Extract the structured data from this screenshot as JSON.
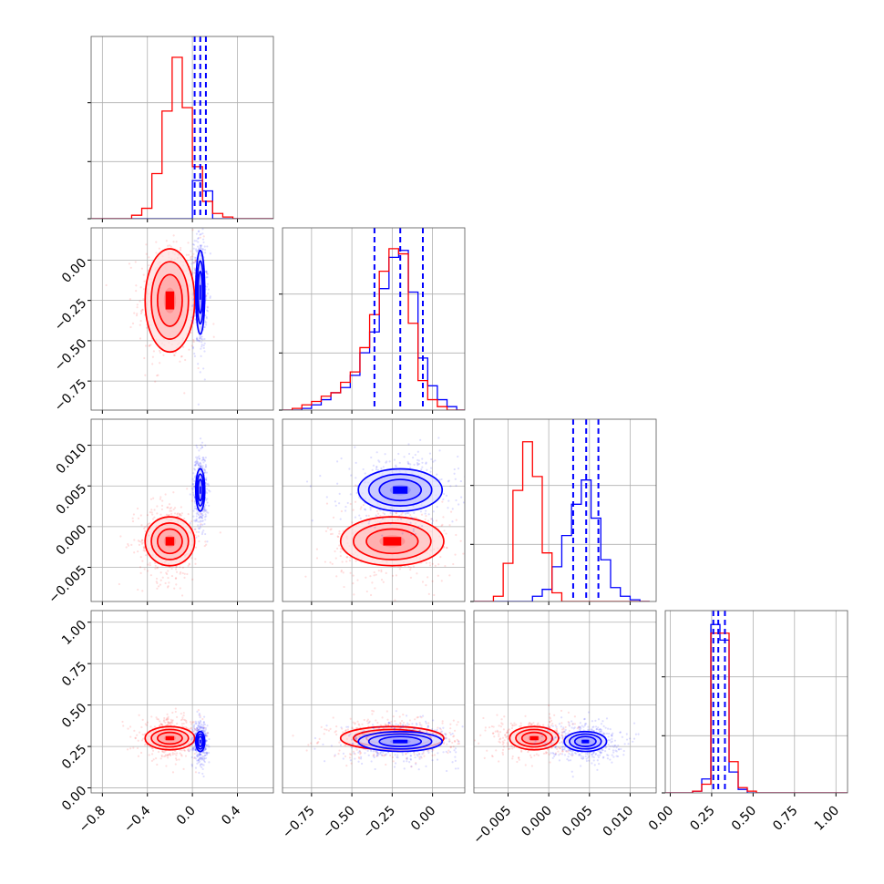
{
  "colors": {
    "red": "#ff0000",
    "blue": "#0000ff",
    "grid": "#b0b0b0",
    "frame": "#555555"
  },
  "chart_data": {
    "type": "corner",
    "grid": true,
    "series": [
      {
        "name": "",
        "color": "#ff0000",
        "means": [
          -0.2,
          -0.25,
          -0.0018,
          0.3
        ],
        "sigmas": [
          0.11,
          0.16,
          0.0015,
          0.035
        ],
        "scatter_sigmas": [
          0.14,
          0.2,
          0.0025,
          0.06
        ]
      },
      {
        "name": "",
        "color": "#0000ff",
        "means": [
          0.07,
          -0.2,
          0.0045,
          0.28
        ],
        "sigmas": [
          0.02,
          0.13,
          0.0013,
          0.03
        ],
        "scatter_sigmas": [
          0.03,
          0.18,
          0.0022,
          0.06
        ]
      }
    ],
    "parameters": [
      {
        "range": [
          -0.9,
          0.72
        ],
        "ticks": [
          -0.8,
          -0.4,
          0.0,
          0.4
        ],
        "tick_labels": [
          "−0.8",
          "−0.4",
          "0.0",
          "0.4"
        ]
      },
      {
        "range": [
          -0.93,
          0.2
        ],
        "ticks": [
          -0.75,
          -0.5,
          -0.25,
          0.0
        ],
        "tick_labels": [
          "−0.75",
          "−0.50",
          "−0.25",
          "0.00"
        ]
      },
      {
        "range": [
          -0.0092,
          0.0132
        ],
        "ticks": [
          -0.005,
          0.0,
          0.005,
          0.01
        ],
        "tick_labels": [
          "−0.005",
          "0.000",
          "0.005",
          "0.010"
        ]
      },
      {
        "range": [
          -0.03,
          1.07
        ],
        "ticks": [
          0.0,
          0.25,
          0.5,
          0.75,
          1.0
        ],
        "tick_labels": [
          "0.00",
          "0.25",
          "0.50",
          "0.75",
          "1.00"
        ]
      }
    ],
    "histograms": [
      {
        "bin_edges": [
          -0.9,
          -0.81,
          -0.72,
          -0.63,
          -0.54,
          -0.45,
          -0.36,
          -0.27,
          -0.18,
          -0.09,
          0.0,
          0.09,
          0.18,
          0.27,
          0.36,
          0.45,
          0.54,
          0.63,
          0.72
        ],
        "ymax": 1.0,
        "red": [
          0.0,
          0.0,
          0.0,
          0.0,
          0.02,
          0.06,
          0.26,
          0.62,
          0.93,
          0.64,
          0.3,
          0.1,
          0.03,
          0.01,
          0.0,
          0.0,
          0.0,
          0.0
        ],
        "blue": [
          0.0,
          0.0,
          0.0,
          0.0,
          0.0,
          0.0,
          0.0,
          0.0,
          0.0,
          0.0,
          0.22,
          0.16,
          0.0,
          0.0,
          0.0,
          0.0,
          0.0,
          0.0
        ],
        "quantiles": [
          0.02,
          0.07,
          0.12
        ]
      },
      {
        "bin_edges": [
          -0.93,
          -0.87,
          -0.81,
          -0.75,
          -0.69,
          -0.63,
          -0.57,
          -0.51,
          -0.45,
          -0.39,
          -0.33,
          -0.27,
          -0.21,
          -0.15,
          -0.09,
          -0.03,
          0.03,
          0.09,
          0.15,
          0.21
        ],
        "ymax": 1.0,
        "red": [
          0.0,
          0.01,
          0.03,
          0.05,
          0.08,
          0.1,
          0.16,
          0.22,
          0.36,
          0.55,
          0.8,
          0.93,
          0.9,
          0.5,
          0.17,
          0.06,
          0.02,
          0.0,
          0.0
        ],
        "blue": [
          0.0,
          0.0,
          0.01,
          0.03,
          0.06,
          0.1,
          0.13,
          0.2,
          0.33,
          0.45,
          0.7,
          0.88,
          0.92,
          0.68,
          0.3,
          0.14,
          0.06,
          0.02,
          0.0
        ],
        "quantiles": [
          -0.36,
          -0.2,
          -0.06
        ]
      },
      {
        "bin_edges": [
          -0.0092,
          -0.008,
          -0.0068,
          -0.0056,
          -0.0044,
          -0.0032,
          -0.002,
          -0.0008,
          0.0004,
          0.0016,
          0.0028,
          0.004,
          0.0052,
          0.0064,
          0.0076,
          0.0088,
          0.01,
          0.0112,
          0.0124
        ],
        "ymax": 1.0,
        "red": [
          0.0,
          0.0,
          0.03,
          0.22,
          0.64,
          0.92,
          0.72,
          0.28,
          0.05,
          0.0,
          0.0,
          0.0,
          0.0,
          0.0,
          0.0,
          0.0,
          0.0,
          0.0
        ],
        "blue": [
          0.0,
          0.0,
          0.0,
          0.0,
          0.0,
          0.0,
          0.03,
          0.07,
          0.2,
          0.38,
          0.56,
          0.7,
          0.48,
          0.24,
          0.08,
          0.03,
          0.01,
          0.0
        ],
        "quantiles": [
          0.003,
          0.0046,
          0.0061
        ]
      },
      {
        "bin_edges": [
          -0.03,
          0.025,
          0.08,
          0.135,
          0.19,
          0.245,
          0.3,
          0.355,
          0.41,
          0.465,
          0.52,
          0.575,
          0.63,
          0.685,
          0.74,
          0.795,
          0.85,
          0.905,
          0.96,
          1.015,
          1.07
        ],
        "ymax": 1.0,
        "red": [
          0.0,
          0.0,
          0.0,
          0.01,
          0.05,
          0.92,
          0.92,
          0.18,
          0.03,
          0.01,
          0.0,
          0.0,
          0.0,
          0.0,
          0.0,
          0.0,
          0.0,
          0.0,
          0.0,
          0.0
        ],
        "blue": [
          0.0,
          0.0,
          0.0,
          0.01,
          0.08,
          0.97,
          0.88,
          0.12,
          0.02,
          0.0,
          0.0,
          0.0,
          0.0,
          0.0,
          0.0,
          0.0,
          0.0,
          0.0,
          0.0,
          0.0
        ],
        "quantiles": [
          0.26,
          0.29,
          0.33
        ]
      }
    ]
  }
}
